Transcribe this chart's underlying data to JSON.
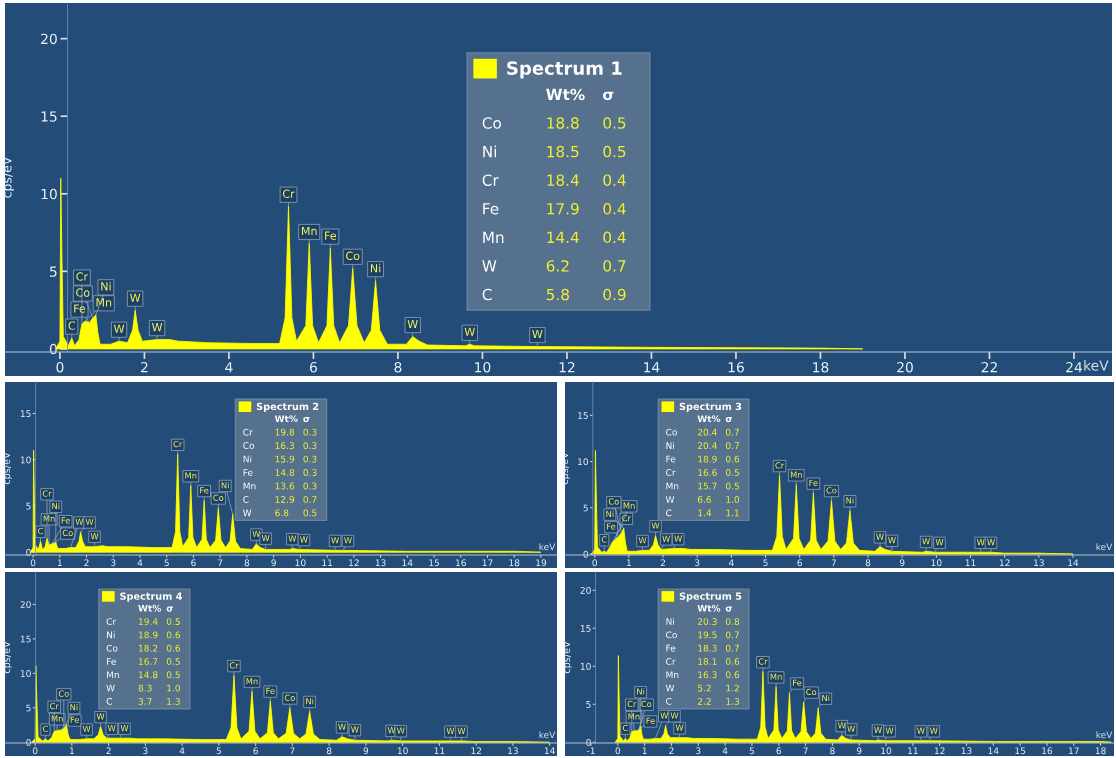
{
  "chart_data": [
    {
      "type": "area",
      "legend": "top",
      "xlabel": "keV",
      "ylabel": "cps/eV",
      "xlim": [
        -1.3,
        24.9
      ],
      "ylim": [
        -0.2,
        22.3
      ],
      "xticks": [
        0,
        2,
        4,
        6,
        8,
        10,
        12,
        14,
        16,
        18,
        20,
        22,
        24
      ],
      "yticks": [
        0,
        5,
        10,
        15,
        20
      ],
      "series": [
        {
          "name": "Spectrum 1",
          "color": "#ffff00",
          "x": [
            -0.1,
            0,
            0.02,
            0.05,
            0.08,
            0.2,
            0.28,
            0.35,
            0.45,
            0.52,
            0.6,
            0.7,
            0.78,
            0.85,
            0.9,
            0.95,
            1.2,
            1.4,
            1.6,
            1.72,
            1.78,
            1.85,
            1.95,
            2.3,
            2.6,
            2.8,
            3.5,
            4.5,
            5.2,
            5.33,
            5.41,
            5.49,
            5.6,
            5.82,
            5.9,
            5.98,
            6.12,
            6.32,
            6.4,
            6.48,
            6.62,
            6.83,
            6.93,
            7.03,
            7.2,
            7.37,
            7.47,
            7.57,
            7.75,
            8.2,
            8.35,
            8.5,
            8.7,
            9.6,
            9.7,
            9.8,
            11.3,
            14,
            18,
            19
          ],
          "values": [
            0,
            0.5,
            11.0,
            5.5,
            0.8,
            0.2,
            0.7,
            0.2,
            0.6,
            1.6,
            1.8,
            1.7,
            2.0,
            2.2,
            1.0,
            0.3,
            0.3,
            0.5,
            0.4,
            1.2,
            2.5,
            1.2,
            0.5,
            0.6,
            0.6,
            0.5,
            0.4,
            0.35,
            0.35,
            2.0,
            9.2,
            2.0,
            0.5,
            1.5,
            6.8,
            1.5,
            0.4,
            1.5,
            6.5,
            1.5,
            0.4,
            1.5,
            5.2,
            1.5,
            0.4,
            1.2,
            4.4,
            1.2,
            0.3,
            0.3,
            0.8,
            0.5,
            0.25,
            0.2,
            0.3,
            0.2,
            0.15,
            0.1,
            0.05,
            0
          ]
        }
      ],
      "annotations": [
        {
          "text": "C",
          "x": 0.28,
          "y": 0.7
        },
        {
          "text": "Fe",
          "x": 0.7,
          "y": 1.7
        },
        {
          "text": "Mn",
          "x": 0.6,
          "y": 1.8
        },
        {
          "text": "Co",
          "x": 0.78,
          "y": 2.0
        },
        {
          "text": "Cr",
          "x": 0.52,
          "y": 1.6
        },
        {
          "text": "Ni",
          "x": 0.85,
          "y": 2.2
        },
        {
          "text": "W",
          "x": 1.4,
          "y": 0.5
        },
        {
          "text": "W",
          "x": 1.78,
          "y": 2.5
        },
        {
          "text": "W",
          "x": 2.3,
          "y": 0.6
        },
        {
          "text": "Cr",
          "x": 5.41,
          "y": 9.2
        },
        {
          "text": "Mn",
          "x": 5.9,
          "y": 6.8
        },
        {
          "text": "Fe",
          "x": 6.4,
          "y": 6.5
        },
        {
          "text": "Co",
          "x": 6.93,
          "y": 5.2
        },
        {
          "text": "Ni",
          "x": 7.47,
          "y": 4.4
        },
        {
          "text": "W",
          "x": 8.35,
          "y": 0.8
        },
        {
          "text": "W",
          "x": 9.7,
          "y": 0.3
        },
        {
          "text": "W",
          "x": 11.3,
          "y": 0.15
        },
        "Wt%",
        "σ",
        "Co",
        "18.8",
        "0.5",
        "Ni",
        "18.5",
        "0.5",
        "Cr",
        "18.4",
        "0.4",
        "Fe",
        "17.9",
        "0.4",
        "Mn",
        "14.4",
        "0.4",
        "W",
        "6.2",
        "0.7",
        "C",
        "5.8",
        "0.9"
      ]
    },
    {
      "type": "area",
      "legend": "top",
      "xlabel": "keV",
      "ylabel": "cps/eV",
      "xlim": [
        -1.05,
        19.6
      ],
      "ylim": [
        -0.3,
        18.4
      ],
      "xticks": [
        0,
        1,
        2,
        3,
        4,
        5,
        6,
        7,
        8,
        9,
        10,
        11,
        12,
        13,
        14,
        15,
        16,
        17,
        18,
        19
      ],
      "yticks": [
        0,
        5,
        10,
        15
      ],
      "series": [
        {
          "name": "Spectrum 2",
          "color": "#ffff00",
          "x": [
            -0.1,
            0,
            0.02,
            0.05,
            0.08,
            0.2,
            0.28,
            0.35,
            0.45,
            0.52,
            0.6,
            0.7,
            0.78,
            0.85,
            0.9,
            0.95,
            1.2,
            1.4,
            1.6,
            1.72,
            1.78,
            1.85,
            1.95,
            2.3,
            2.6,
            2.8,
            3.5,
            4.5,
            5.2,
            5.33,
            5.41,
            5.49,
            5.6,
            5.82,
            5.9,
            5.98,
            6.12,
            6.32,
            6.4,
            6.48,
            6.62,
            6.83,
            6.93,
            7.03,
            7.2,
            7.37,
            7.47,
            7.57,
            7.75,
            8.2,
            8.35,
            8.5,
            8.7,
            9.6,
            9.7,
            9.95,
            11.3,
            11.6,
            14,
            18,
            19
          ],
          "values": [
            0,
            0.5,
            11.0,
            5.5,
            0.8,
            0.3,
            1.2,
            0.3,
            0.6,
            1.5,
            0.8,
            0.9,
            1.0,
            1.1,
            0.6,
            0.4,
            0.4,
            0.5,
            0.5,
            1.2,
            2.2,
            1.2,
            0.6,
            0.6,
            0.7,
            0.6,
            0.6,
            0.5,
            0.5,
            2.2,
            10.6,
            2.2,
            0.6,
            1.6,
            7.2,
            1.6,
            0.5,
            1.4,
            5.6,
            1.4,
            0.5,
            1.3,
            4.8,
            1.3,
            0.5,
            1.2,
            4.1,
            1.2,
            0.4,
            0.3,
            0.9,
            0.5,
            0.3,
            0.3,
            0.4,
            0.3,
            0.2,
            0.2,
            0.1,
            0.1,
            0
          ]
        }
      ],
      "annotations": [
        {
          "text": "C",
          "x": 0.28,
          "y": 1.2
        },
        {
          "text": "Co",
          "x": 0.78,
          "y": 1.0
        },
        {
          "text": "Mn",
          "x": 0.6,
          "y": 0.8
        },
        {
          "text": "Fe",
          "x": 0.7,
          "y": 0.9
        },
        {
          "text": "Ni",
          "x": 0.85,
          "y": 1.1
        },
        {
          "text": "Cr",
          "x": 0.52,
          "y": 1.5
        },
        {
          "text": "W",
          "x": 1.4,
          "y": 0.5
        },
        {
          "text": "W",
          "x": 1.78,
          "y": 2.2
        },
        {
          "text": "W",
          "x": 2.3,
          "y": 0.6
        },
        {
          "text": "Cr",
          "x": 5.41,
          "y": 10.6
        },
        {
          "text": "Mn",
          "x": 5.9,
          "y": 7.2
        },
        {
          "text": "Fe",
          "x": 6.4,
          "y": 5.6
        },
        {
          "text": "Co",
          "x": 6.93,
          "y": 4.8
        },
        {
          "text": "Ni",
          "x": 7.47,
          "y": 4.1
        },
        {
          "text": "W",
          "x": 8.35,
          "y": 0.9
        },
        {
          "text": "W",
          "x": 8.7,
          "y": 0.3
        },
        {
          "text": "W",
          "x": 9.7,
          "y": 0.4
        },
        {
          "text": "W",
          "x": 9.95,
          "y": 0.3
        },
        {
          "text": "W",
          "x": 11.3,
          "y": 0.2
        },
        {
          "text": "W",
          "x": 11.6,
          "y": 0.2
        },
        "Wt%",
        "σ",
        "Cr",
        "19.8",
        "0.3",
        "Co",
        "16.3",
        "0.3",
        "Ni",
        "15.9",
        "0.3",
        "Fe",
        "14.8",
        "0.3",
        "Mn",
        "13.6",
        "0.3",
        "C",
        "12.9",
        "0.7",
        "W",
        "6.8",
        "0.5"
      ]
    },
    {
      "type": "area",
      "legend": "top left",
      "xlabel": "keV",
      "ylabel": "cps/eV",
      "xlim": [
        -0.87,
        15.2
      ],
      "ylim": [
        -0.1,
        18.6
      ],
      "xticks": [
        0,
        1,
        2,
        3,
        4,
        5,
        6,
        7,
        8,
        9,
        10,
        11,
        12,
        13,
        14
      ],
      "yticks": [
        0,
        5,
        10,
        15
      ],
      "series": [
        {
          "name": "Spectrum 3",
          "color": "#ffff00",
          "x": [
            -0.1,
            0,
            0.02,
            0.05,
            0.08,
            0.2,
            0.28,
            0.35,
            0.45,
            0.52,
            0.6,
            0.7,
            0.78,
            0.85,
            0.9,
            0.95,
            1.2,
            1.4,
            1.6,
            1.72,
            1.78,
            1.85,
            1.95,
            2.3,
            2.6,
            2.8,
            3.5,
            4.5,
            5.2,
            5.33,
            5.41,
            5.49,
            5.6,
            5.82,
            5.9,
            5.98,
            6.12,
            6.32,
            6.4,
            6.48,
            6.62,
            6.83,
            6.93,
            7.03,
            7.2,
            7.37,
            7.47,
            7.57,
            7.75,
            8.2,
            8.35,
            8.5,
            8.7,
            9.6,
            9.7,
            9.95,
            11.3,
            11.6,
            12,
            13,
            14
          ],
          "values": [
            0,
            0.5,
            11.2,
            5.6,
            0.8,
            0.2,
            0.3,
            0.2,
            0.8,
            1.3,
            1.6,
            1.9,
            2.3,
            2.8,
            1.2,
            0.3,
            0.3,
            0.4,
            0.4,
            1.0,
            2.0,
            1.0,
            0.5,
            0.6,
            0.6,
            0.5,
            0.5,
            0.4,
            0.4,
            1.9,
            8.5,
            1.9,
            0.5,
            1.7,
            7.5,
            1.7,
            0.5,
            1.5,
            6.6,
            1.5,
            0.5,
            1.4,
            5.8,
            1.4,
            0.5,
            1.2,
            4.7,
            1.2,
            0.4,
            0.3,
            0.8,
            0.5,
            0.3,
            0.2,
            0.3,
            0.2,
            0.2,
            0.2,
            0.1,
            0.1,
            0
          ]
        }
      ],
      "annotations": [
        {
          "text": "C",
          "x": 0.28,
          "y": 0.3
        },
        {
          "text": "Fe",
          "x": 0.7,
          "y": 1.9
        },
        {
          "text": "Cr",
          "x": 0.52,
          "y": 1.3
        },
        {
          "text": "Ni",
          "x": 0.85,
          "y": 2.8
        },
        {
          "text": "Mn",
          "x": 0.6,
          "y": 1.6
        },
        {
          "text": "Co",
          "x": 0.78,
          "y": 2.3
        },
        {
          "text": "W",
          "x": 1.4,
          "y": 0.4
        },
        {
          "text": "W",
          "x": 1.78,
          "y": 2.0
        },
        {
          "text": "W",
          "x": 1.95,
          "y": 0.5
        },
        {
          "text": "W",
          "x": 2.3,
          "y": 0.6
        },
        {
          "text": "Cr",
          "x": 5.41,
          "y": 8.5
        },
        {
          "text": "Mn",
          "x": 5.9,
          "y": 7.5
        },
        {
          "text": "Fe",
          "x": 6.4,
          "y": 6.6
        },
        {
          "text": "Co",
          "x": 6.93,
          "y": 5.8
        },
        {
          "text": "Ni",
          "x": 7.47,
          "y": 4.7
        },
        {
          "text": "W",
          "x": 8.35,
          "y": 0.8
        },
        {
          "text": "W",
          "x": 8.7,
          "y": 0.3
        },
        {
          "text": "W",
          "x": 9.7,
          "y": 0.3
        },
        {
          "text": "W",
          "x": 9.95,
          "y": 0.2
        },
        {
          "text": "W",
          "x": 11.3,
          "y": 0.2
        },
        {
          "text": "W",
          "x": 11.6,
          "y": 0.2
        },
        "Wt%",
        "σ",
        "Co",
        "20.4",
        "0.7",
        "Ni",
        "20.4",
        "0.7",
        "Fe",
        "18.9",
        "0.6",
        "Cr",
        "16.6",
        "0.5",
        "Mn",
        "15.7",
        "0.5",
        "W",
        "6.6",
        "1.0",
        "C",
        "1.4",
        "1.1"
      ]
    },
    {
      "type": "area",
      "legend": "top left",
      "xlabel": "keV",
      "ylabel": "cps/eV",
      "xlim": [
        -0.82,
        14.2
      ],
      "ylim": [
        -0.1,
        24.7
      ],
      "xticks": [
        0,
        1,
        2,
        3,
        4,
        5,
        6,
        7,
        8,
        9,
        10,
        11,
        12,
        13,
        14
      ],
      "yticks": [
        0,
        5,
        10,
        15,
        20
      ],
      "series": [
        {
          "name": "Spectrum 4",
          "color": "#ffff00",
          "x": [
            -0.1,
            0,
            0.02,
            0.05,
            0.08,
            0.2,
            0.28,
            0.35,
            0.45,
            0.52,
            0.6,
            0.7,
            0.78,
            0.85,
            0.9,
            0.95,
            1.2,
            1.4,
            1.6,
            1.72,
            1.78,
            1.85,
            1.95,
            2.3,
            2.6,
            2.8,
            3.5,
            4.5,
            5.2,
            5.33,
            5.41,
            5.49,
            5.6,
            5.82,
            5.9,
            5.98,
            6.12,
            6.32,
            6.4,
            6.48,
            6.62,
            6.83,
            6.93,
            7.03,
            7.2,
            7.37,
            7.47,
            7.57,
            7.75,
            8.2,
            8.35,
            8.5,
            8.7,
            9.6,
            9.7,
            9.95,
            11.3,
            11.6,
            12,
            13,
            14
          ],
          "values": [
            0,
            0.5,
            11.1,
            5.5,
            0.8,
            0.2,
            0.5,
            0.2,
            0.7,
            1.6,
            1.7,
            1.8,
            2.0,
            2.6,
            1.1,
            0.4,
            0.4,
            0.5,
            0.5,
            1.1,
            2.3,
            1.1,
            0.6,
            0.6,
            0.6,
            0.5,
            0.5,
            0.4,
            0.4,
            2.1,
            9.7,
            2.1,
            0.5,
            1.6,
            7.4,
            1.6,
            0.5,
            1.4,
            6.0,
            1.4,
            0.5,
            1.3,
            5.0,
            1.3,
            0.5,
            1.2,
            4.5,
            1.2,
            0.4,
            0.3,
            0.8,
            0.5,
            0.3,
            0.2,
            0.3,
            0.2,
            0.2,
            0.2,
            0.1,
            0.1,
            0
          ]
        }
      ],
      "annotations": [
        {
          "text": "C",
          "x": 0.28,
          "y": 0.5
        },
        {
          "text": "Fe",
          "x": 0.7,
          "y": 1.8
        },
        {
          "text": "Mn",
          "x": 0.6,
          "y": 1.7
        },
        {
          "text": "Cr",
          "x": 0.52,
          "y": 1.6
        },
        {
          "text": "Ni",
          "x": 0.85,
          "y": 2.6
        },
        {
          "text": "Co",
          "x": 0.78,
          "y": 2.0
        },
        {
          "text": "W",
          "x": 1.4,
          "y": 0.5
        },
        {
          "text": "W",
          "x": 1.78,
          "y": 2.3
        },
        {
          "text": "W",
          "x": 1.95,
          "y": 0.6
        },
        {
          "text": "W",
          "x": 2.3,
          "y": 0.6
        },
        {
          "text": "Cr",
          "x": 5.41,
          "y": 9.7
        },
        {
          "text": "Mn",
          "x": 5.9,
          "y": 7.4
        },
        {
          "text": "Fe",
          "x": 6.4,
          "y": 6.0
        },
        {
          "text": "Co",
          "x": 6.93,
          "y": 5.0
        },
        {
          "text": "Ni",
          "x": 7.47,
          "y": 4.5
        },
        {
          "text": "W",
          "x": 8.35,
          "y": 0.8
        },
        {
          "text": "W",
          "x": 8.7,
          "y": 0.3
        },
        {
          "text": "W",
          "x": 9.7,
          "y": 0.3
        },
        {
          "text": "W",
          "x": 9.95,
          "y": 0.2
        },
        {
          "text": "W",
          "x": 11.3,
          "y": 0.2
        },
        {
          "text": "W",
          "x": 11.6,
          "y": 0.2
        },
        "Wt%",
        "σ",
        "Cr",
        "19.4",
        "0.5",
        "Ni",
        "18.9",
        "0.6",
        "Co",
        "18.2",
        "0.6",
        "Fe",
        "16.7",
        "0.5",
        "Mn",
        "14.8",
        "0.5",
        "W",
        "8.3",
        "1.0",
        "C",
        "3.7",
        "1.3"
      ]
    },
    {
      "type": "area",
      "legend": "top left",
      "xlabel": "keV",
      "ylabel": "cps/eV",
      "xlim": [
        -1.97,
        18.5
      ],
      "ylim": [
        -0.1,
        22.4
      ],
      "xticks": [
        -1,
        0,
        1,
        2,
        3,
        4,
        5,
        6,
        7,
        8,
        9,
        10,
        11,
        12,
        13,
        14,
        15,
        16,
        17,
        18
      ],
      "yticks": [
        0,
        5,
        10,
        15,
        20
      ],
      "series": [
        {
          "name": "Spectrum 5",
          "color": "#ffff00",
          "x": [
            -0.1,
            0,
            0.02,
            0.05,
            0.08,
            0.2,
            0.28,
            0.35,
            0.45,
            0.52,
            0.6,
            0.7,
            0.78,
            0.85,
            0.9,
            0.95,
            1.2,
            1.4,
            1.6,
            1.72,
            1.78,
            1.85,
            1.95,
            2.3,
            2.6,
            2.8,
            3.5,
            4.5,
            5.2,
            5.33,
            5.41,
            5.49,
            5.6,
            5.82,
            5.9,
            5.98,
            6.12,
            6.32,
            6.4,
            6.48,
            6.62,
            6.83,
            6.93,
            7.03,
            7.2,
            7.37,
            7.47,
            7.57,
            7.75,
            8.2,
            8.35,
            8.5,
            8.7,
            9.6,
            9.7,
            9.95,
            11.3,
            11.6,
            14,
            18,
            18.4
          ],
          "values": [
            0,
            0.5,
            11.4,
            5.7,
            0.8,
            0.2,
            0.5,
            0.2,
            0.6,
            1.4,
            1.5,
            1.5,
            1.6,
            2.2,
            1.0,
            0.4,
            0.4,
            0.5,
            0.5,
            1.1,
            2.2,
            1.1,
            0.6,
            0.6,
            0.6,
            0.5,
            0.5,
            0.4,
            0.4,
            2.0,
            9.3,
            2.0,
            0.5,
            1.6,
            7.3,
            1.6,
            0.5,
            1.5,
            6.5,
            1.5,
            0.5,
            1.4,
            5.3,
            1.4,
            0.5,
            1.2,
            4.5,
            1.2,
            0.4,
            0.3,
            0.9,
            0.5,
            0.3,
            0.2,
            0.3,
            0.2,
            0.2,
            0.2,
            0.1,
            0.1,
            0
          ]
        }
      ],
      "annotations": [
        {
          "text": "C",
          "x": 0.28,
          "y": 0.5
        },
        {
          "text": "Fe",
          "x": 0.7,
          "y": 1.5
        },
        {
          "text": "Mn",
          "x": 0.6,
          "y": 1.5
        },
        {
          "text": "Cr",
          "x": 0.52,
          "y": 1.4
        },
        {
          "text": "Co",
          "x": 0.78,
          "y": 1.6
        },
        {
          "text": "Ni",
          "x": 0.85,
          "y": 2.2
        },
        {
          "text": "W",
          "x": 1.4,
          "y": 0.5
        },
        {
          "text": "W",
          "x": 1.78,
          "y": 2.2
        },
        {
          "text": "W",
          "x": 2.3,
          "y": 0.6
        },
        {
          "text": "Cr",
          "x": 5.41,
          "y": 9.3
        },
        {
          "text": "Mn",
          "x": 5.9,
          "y": 7.3
        },
        {
          "text": "Fe",
          "x": 6.4,
          "y": 6.5
        },
        {
          "text": "Co",
          "x": 6.93,
          "y": 5.3
        },
        {
          "text": "Ni",
          "x": 7.47,
          "y": 4.5
        },
        {
          "text": "W",
          "x": 8.35,
          "y": 0.9
        },
        {
          "text": "W",
          "x": 8.7,
          "y": 0.3
        },
        {
          "text": "W",
          "x": 9.7,
          "y": 0.3
        },
        {
          "text": "W",
          "x": 9.95,
          "y": 0.2
        },
        {
          "text": "W",
          "x": 11.3,
          "y": 0.2
        },
        {
          "text": "W",
          "x": 11.6,
          "y": 0.2
        },
        "Wt%",
        "σ",
        "Ni",
        "20.3",
        "0.8",
        "Co",
        "19.5",
        "0.7",
        "Fe",
        "18.3",
        "0.7",
        "Cr",
        "18.1",
        "0.6",
        "Mn",
        "16.3",
        "0.6",
        "W",
        "5.2",
        "1.2",
        "C",
        "2.2",
        "1.3"
      ]
    }
  ]
}
